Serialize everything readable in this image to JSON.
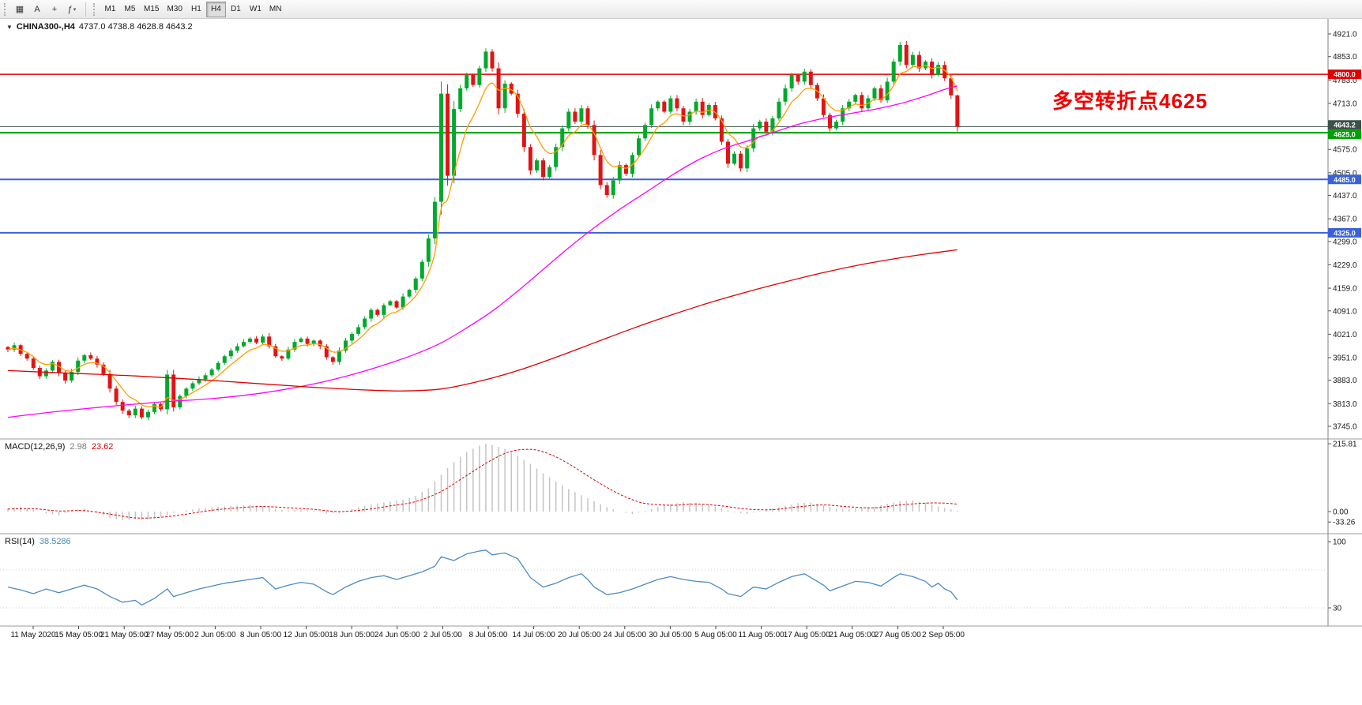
{
  "toolbar": {
    "icon_buttons": [
      {
        "id": "charts-grid-icon",
        "glyph": "▦"
      },
      {
        "id": "text-label-tool-icon",
        "glyph": "A"
      },
      {
        "id": "crosshair-tool-icon",
        "glyph": "+"
      },
      {
        "id": "indicators-menu-icon",
        "glyph": "ƒ",
        "caret": "▾"
      }
    ],
    "timeframes": [
      {
        "label": "M1"
      },
      {
        "label": "M5"
      },
      {
        "label": "M15"
      },
      {
        "label": "M30"
      },
      {
        "label": "H1"
      },
      {
        "label": "H4",
        "active": true
      },
      {
        "label": "D1"
      },
      {
        "label": "W1"
      },
      {
        "label": "MN"
      }
    ]
  },
  "symbol_bar": {
    "collapse_glyph": "▼",
    "symbol": "CHINA300-,H4",
    "ohlc": "4737.0 4738.8 4628.8 4643.2"
  },
  "annotation": {
    "text": "多空转折点4625",
    "color": "#f00000"
  },
  "indicator_labels": {
    "macd": {
      "name": "MACD(12,26,9)",
      "main_value": "2.98",
      "signal_value": "23.62"
    },
    "rsi": {
      "name": "RSI(14)",
      "value": "38.5286"
    }
  },
  "chart_data": [
    {
      "type": "candlestick",
      "title": "CHINA300- H4",
      "ylim": [
        3745,
        4921
      ],
      "y_ticks": [
        4921,
        4853,
        4783,
        4713,
        4575,
        4505,
        4437,
        4367,
        4299,
        4229,
        4159,
        4091,
        4021,
        3951,
        3883,
        3813,
        3745
      ],
      "price_lines": [
        {
          "price": 4800.0,
          "color": "#e00000",
          "width": 1.4
        },
        {
          "price": 4643.2,
          "color": "#3c5148",
          "width": 1,
          "current": true
        },
        {
          "price": 4625.0,
          "color": "#00a000",
          "width": 2
        },
        {
          "price": 4485.0,
          "color": "#3a62d8",
          "width": 2
        },
        {
          "price": 4325.0,
          "color": "#3a62d8",
          "width": 2
        }
      ],
      "last_candle_ohlc": [
        4737.0,
        4738.8,
        4628.8,
        4643.2
      ],
      "closes": [
        3975,
        3988,
        3962,
        3948,
        3920,
        3895,
        3912,
        3938,
        3905,
        3882,
        3908,
        3942,
        3958,
        3948,
        3930,
        3902,
        3858,
        3818,
        3792,
        3778,
        3798,
        3772,
        3788,
        3812,
        3796,
        3900,
        3802,
        3836,
        3858,
        3874,
        3886,
        3898,
        3915,
        3935,
        3955,
        3972,
        3985,
        3998,
        4008,
        3996,
        4014,
        3985,
        3955,
        3948,
        3975,
        3998,
        4008,
        3992,
        4002,
        3985,
        3952,
        3938,
        3972,
        4002,
        4022,
        4042,
        4068,
        4094,
        4079,
        4108,
        4120,
        4101,
        4134,
        4154,
        4188,
        4238,
        4308,
        4418,
        4742,
        4496,
        4696,
        4758,
        4798,
        4768,
        4818,
        4868,
        4818,
        4698,
        4772,
        4742,
        4682,
        4582,
        4512,
        4542,
        4492,
        4522,
        4582,
        4638,
        4688,
        4658,
        4698,
        4648,
        4558,
        4468,
        4438,
        4482,
        4528,
        4502,
        4558,
        4608,
        4648,
        4698,
        4718,
        4688,
        4728,
        4698,
        4658,
        4688,
        4718,
        4678,
        4708,
        4668,
        4598,
        4532,
        4562,
        4518,
        4578,
        4638,
        4658,
        4628,
        4668,
        4718,
        4758,
        4798,
        4778,
        4808,
        4768,
        4728,
        4678,
        4638,
        4658,
        4698,
        4718,
        4738,
        4698,
        4728,
        4758,
        4722,
        4778,
        4838,
        4888,
        4828,
        4858,
        4818,
        4838,
        4798,
        4828,
        4788,
        4737,
        4643.2
      ],
      "ma_lines": [
        {
          "name": "ma-fast-line",
          "color": "#ff9d00",
          "mode": "ema",
          "alpha": 0.28
        },
        {
          "name": "ma-mid-line",
          "color": "#ff00ff",
          "points": [
            [
              0,
              3772
            ],
            [
              8,
              3790
            ],
            [
              16,
              3805
            ],
            [
              24,
              3818
            ],
            [
              32,
              3828
            ],
            [
              40,
              3845
            ],
            [
              48,
              3872
            ],
            [
              54,
              3900
            ],
            [
              60,
              3935
            ],
            [
              64,
              3962
            ],
            [
              68,
              3995
            ],
            [
              72,
              4040
            ],
            [
              76,
              4090
            ],
            [
              80,
              4150
            ],
            [
              84,
              4215
            ],
            [
              88,
              4280
            ],
            [
              92,
              4340
            ],
            [
              96,
              4395
            ],
            [
              100,
              4445
            ],
            [
              104,
              4495
            ],
            [
              108,
              4540
            ],
            [
              112,
              4575
            ],
            [
              116,
              4600
            ],
            [
              120,
              4625
            ],
            [
              124,
              4650
            ],
            [
              128,
              4668
            ],
            [
              132,
              4682
            ],
            [
              136,
              4695
            ],
            [
              140,
              4712
            ],
            [
              144,
              4735
            ],
            [
              147,
              4755
            ],
            [
              149,
              4765
            ]
          ]
        },
        {
          "name": "ma-slow-line",
          "color": "#e00000",
          "points": [
            [
              0,
              3912
            ],
            [
              10,
              3904
            ],
            [
              20,
              3896
            ],
            [
              30,
              3885
            ],
            [
              40,
              3872
            ],
            [
              48,
              3862
            ],
            [
              56,
              3854
            ],
            [
              62,
              3851
            ],
            [
              68,
              3857
            ],
            [
              74,
              3880
            ],
            [
              80,
              3912
            ],
            [
              86,
              3952
            ],
            [
              92,
              3995
            ],
            [
              98,
              4038
            ],
            [
              104,
              4078
            ],
            [
              110,
              4115
            ],
            [
              116,
              4148
            ],
            [
              122,
              4178
            ],
            [
              128,
              4206
            ],
            [
              134,
              4230
            ],
            [
              140,
              4250
            ],
            [
              145,
              4264
            ],
            [
              149,
              4274
            ]
          ]
        }
      ],
      "colors": {
        "up": "#00a92c",
        "down": "#e01414"
      },
      "x_labels": [
        "11 May 2020",
        "15 May 05:00",
        "21 May 05:00",
        "27 May 05:00",
        "2 Jun 05:00",
        "8 Jun 05:00",
        "12 Jun 05:00",
        "18 Jun 05:00",
        "24 Jun 05:00",
        "2 Jul 05:00",
        "8 Jul 05:00",
        "14 Jul 05:00",
        "20 Jul 05:00",
        "24 Jul 05:00",
        "30 Jul 05:00",
        "5 Aug 05:00",
        "11 Aug 05:00",
        "17 Aug 05:00",
        "21 Aug 05:00",
        "27 Aug 05:00",
        "2 Sep 05:00"
      ]
    },
    {
      "type": "macd_histogram",
      "params": "12,26,9",
      "current": {
        "macd": 2.98,
        "signal": 23.62
      },
      "y_ticks": [
        215.81,
        0,
        -33.26
      ],
      "histogram_points": [
        [
          0,
          10
        ],
        [
          2,
          16
        ],
        [
          4,
          6
        ],
        [
          6,
          -6
        ],
        [
          8,
          -12
        ],
        [
          10,
          2
        ],
        [
          12,
          10
        ],
        [
          14,
          -4
        ],
        [
          16,
          -20
        ],
        [
          18,
          -28
        ],
        [
          20,
          -24
        ],
        [
          22,
          -26
        ],
        [
          24,
          -16
        ],
        [
          26,
          -4
        ],
        [
          28,
          4
        ],
        [
          30,
          10
        ],
        [
          32,
          14
        ],
        [
          34,
          17
        ],
        [
          36,
          19
        ],
        [
          38,
          21
        ],
        [
          40,
          18
        ],
        [
          42,
          8
        ],
        [
          44,
          4
        ],
        [
          46,
          6
        ],
        [
          48,
          2
        ],
        [
          50,
          -6
        ],
        [
          52,
          -4
        ],
        [
          54,
          8
        ],
        [
          56,
          18
        ],
        [
          58,
          26
        ],
        [
          60,
          32
        ],
        [
          62,
          38
        ],
        [
          64,
          50
        ],
        [
          66,
          74
        ],
        [
          68,
          118
        ],
        [
          70,
          158
        ],
        [
          72,
          190
        ],
        [
          74,
          210
        ],
        [
          75,
          215.81
        ],
        [
          76,
          212
        ],
        [
          78,
          200
        ],
        [
          80,
          178
        ],
        [
          82,
          152
        ],
        [
          84,
          122
        ],
        [
          86,
          96
        ],
        [
          88,
          72
        ],
        [
          90,
          52
        ],
        [
          92,
          32
        ],
        [
          94,
          14
        ],
        [
          96,
          0
        ],
        [
          98,
          -8
        ],
        [
          100,
          2
        ],
        [
          102,
          14
        ],
        [
          104,
          24
        ],
        [
          106,
          30
        ],
        [
          108,
          27
        ],
        [
          110,
          22
        ],
        [
          112,
          10
        ],
        [
          114,
          -2
        ],
        [
          116,
          -8
        ],
        [
          118,
          2
        ],
        [
          120,
          10
        ],
        [
          122,
          18
        ],
        [
          124,
          27
        ],
        [
          126,
          29
        ],
        [
          128,
          20
        ],
        [
          130,
          10
        ],
        [
          132,
          8
        ],
        [
          134,
          12
        ],
        [
          136,
          16
        ],
        [
          138,
          25
        ],
        [
          140,
          33
        ],
        [
          142,
          35
        ],
        [
          144,
          28
        ],
        [
          146,
          16
        ],
        [
          148,
          7
        ],
        [
          149,
          2.98
        ]
      ],
      "signal_points": [
        [
          0,
          8
        ],
        [
          4,
          9
        ],
        [
          8,
          2
        ],
        [
          12,
          3
        ],
        [
          16,
          -8
        ],
        [
          20,
          -20
        ],
        [
          24,
          -18
        ],
        [
          28,
          -8
        ],
        [
          32,
          4
        ],
        [
          36,
          12
        ],
        [
          40,
          16
        ],
        [
          44,
          12
        ],
        [
          48,
          7
        ],
        [
          52,
          0
        ],
        [
          56,
          6
        ],
        [
          60,
          18
        ],
        [
          64,
          32
        ],
        [
          68,
          64
        ],
        [
          72,
          115
        ],
        [
          76,
          165
        ],
        [
          79,
          192
        ],
        [
          82,
          198
        ],
        [
          84,
          190
        ],
        [
          86,
          174
        ],
        [
          88,
          152
        ],
        [
          90,
          127
        ],
        [
          92,
          101
        ],
        [
          94,
          77
        ],
        [
          96,
          55
        ],
        [
          98,
          38
        ],
        [
          100,
          26
        ],
        [
          104,
          20
        ],
        [
          108,
          24
        ],
        [
          112,
          18
        ],
        [
          116,
          8
        ],
        [
          120,
          6
        ],
        [
          124,
          15
        ],
        [
          128,
          21
        ],
        [
          132,
          15
        ],
        [
          136,
          12
        ],
        [
          140,
          21
        ],
        [
          144,
          27
        ],
        [
          147,
          27
        ],
        [
          149,
          23.62
        ]
      ],
      "colors": {
        "histogram": "#c4c4c4",
        "signal": "#e00000"
      }
    },
    {
      "type": "rsi",
      "period": 14,
      "current": 38.5286,
      "y_ticks": [
        100,
        30
      ],
      "levels": [
        70,
        30
      ],
      "points": [
        [
          0,
          52
        ],
        [
          2,
          49
        ],
        [
          4,
          45
        ],
        [
          6,
          50
        ],
        [
          8,
          46
        ],
        [
          10,
          50
        ],
        [
          12,
          54
        ],
        [
          14,
          50
        ],
        [
          16,
          42
        ],
        [
          18,
          36
        ],
        [
          20,
          38
        ],
        [
          21,
          33
        ],
        [
          23,
          40
        ],
        [
          25,
          50
        ],
        [
          26,
          42
        ],
        [
          28,
          46
        ],
        [
          30,
          50
        ],
        [
          32,
          53
        ],
        [
          34,
          56
        ],
        [
          36,
          58
        ],
        [
          38,
          60
        ],
        [
          40,
          62
        ],
        [
          41,
          56
        ],
        [
          42,
          50
        ],
        [
          44,
          54
        ],
        [
          46,
          57
        ],
        [
          48,
          55
        ],
        [
          50,
          47
        ],
        [
          51,
          44
        ],
        [
          53,
          52
        ],
        [
          55,
          58
        ],
        [
          57,
          62
        ],
        [
          59,
          64
        ],
        [
          61,
          60
        ],
        [
          63,
          64
        ],
        [
          65,
          68
        ],
        [
          67,
          74
        ],
        [
          68,
          84
        ],
        [
          70,
          80
        ],
        [
          72,
          87
        ],
        [
          74,
          90
        ],
        [
          75,
          91
        ],
        [
          76,
          86
        ],
        [
          78,
          88
        ],
        [
          80,
          82
        ],
        [
          81,
          72
        ],
        [
          82,
          62
        ],
        [
          84,
          52
        ],
        [
          86,
          56
        ],
        [
          88,
          62
        ],
        [
          90,
          66
        ],
        [
          91,
          60
        ],
        [
          92,
          52
        ],
        [
          94,
          44
        ],
        [
          96,
          46
        ],
        [
          98,
          50
        ],
        [
          100,
          55
        ],
        [
          102,
          60
        ],
        [
          104,
          63
        ],
        [
          106,
          60
        ],
        [
          108,
          58
        ],
        [
          110,
          57
        ],
        [
          112,
          50
        ],
        [
          113,
          45
        ],
        [
          115,
          42
        ],
        [
          117,
          52
        ],
        [
          119,
          50
        ],
        [
          121,
          57
        ],
        [
          123,
          63
        ],
        [
          125,
          66
        ],
        [
          126,
          62
        ],
        [
          128,
          54
        ],
        [
          129,
          48
        ],
        [
          131,
          53
        ],
        [
          133,
          58
        ],
        [
          135,
          57
        ],
        [
          137,
          53
        ],
        [
          139,
          62
        ],
        [
          140,
          66
        ],
        [
          142,
          63
        ],
        [
          144,
          58
        ],
        [
          145,
          52
        ],
        [
          146,
          56
        ],
        [
          147,
          50
        ],
        [
          148,
          47
        ],
        [
          149,
          38.5286
        ]
      ],
      "color": "#4a8bc4"
    }
  ]
}
